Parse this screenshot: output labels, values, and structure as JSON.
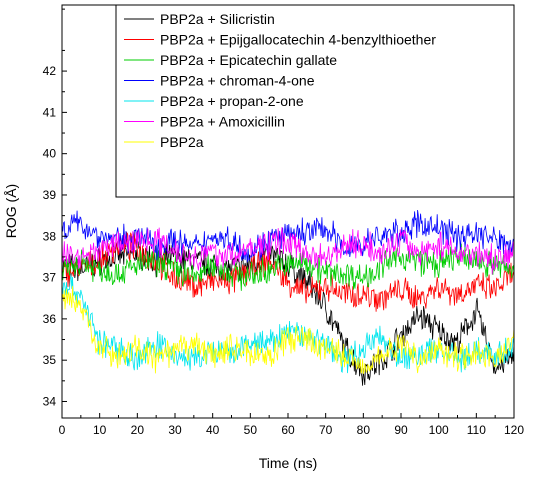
{
  "chart_data": {
    "type": "line",
    "title": "",
    "xlabel": "Time (ns)",
    "ylabel": "ROG (Å)",
    "xlim": [
      0,
      120
    ],
    "ylim": [
      33.6,
      43.6
    ],
    "xticks": [
      "0",
      "10",
      "20",
      "30",
      "40",
      "50",
      "60",
      "70",
      "80",
      "90",
      "100",
      "110",
      "120"
    ],
    "yticks": [
      "34",
      "35",
      "36",
      "37",
      "38",
      "39",
      "40",
      "41",
      "42"
    ],
    "grid": false,
    "legend_position": "top-right, inside",
    "x": [
      0,
      5,
      10,
      15,
      20,
      25,
      30,
      35,
      40,
      45,
      50,
      55,
      60,
      65,
      70,
      75,
      80,
      85,
      90,
      95,
      100,
      105,
      110,
      115,
      120
    ],
    "series": [
      {
        "name": "PBP2a + Silicristin",
        "color": "#000000",
        "values": [
          37.3,
          37.2,
          37.4,
          37.5,
          37.6,
          37.4,
          37.5,
          37.4,
          37.3,
          37.2,
          37.3,
          37.6,
          37.3,
          36.9,
          36.3,
          35.3,
          34.7,
          35.0,
          35.6,
          36.1,
          35.7,
          35.4,
          36.2,
          34.8,
          35.1
        ]
      },
      {
        "name": "PBP2a + Epijgallocatechin 4-benzylthioether",
        "color": "#ff0000",
        "values": [
          37.1,
          37.2,
          37.4,
          37.8,
          37.7,
          37.4,
          37.0,
          36.8,
          36.9,
          36.9,
          37.2,
          37.4,
          36.9,
          36.6,
          36.8,
          36.6,
          36.6,
          36.5,
          36.7,
          36.5,
          36.8,
          36.6,
          36.8,
          36.7,
          37.1
        ]
      },
      {
        "name": "PBP2a + Epicatechin gallate",
        "color": "#00cc00",
        "values": [
          37.1,
          37.4,
          37.2,
          37.1,
          37.3,
          37.4,
          37.2,
          37.0,
          37.3,
          37.1,
          37.0,
          37.2,
          37.3,
          37.4,
          37.1,
          37.1,
          37.0,
          37.3,
          37.5,
          37.4,
          37.3,
          37.5,
          37.4,
          37.3,
          37.2
        ]
      },
      {
        "name": "PBP2a + chroman-4-one",
        "color": "#0000ff",
        "values": [
          38.2,
          38.3,
          38.0,
          37.9,
          38.0,
          37.8,
          37.9,
          37.7,
          38.0,
          37.9,
          37.6,
          37.9,
          38.0,
          38.1,
          38.2,
          37.7,
          37.8,
          38.0,
          38.1,
          38.3,
          38.2,
          38.0,
          38.1,
          37.9,
          37.8
        ]
      },
      {
        "name": "PBP2a + propan-2-one",
        "color": "#00e5ee",
        "values": [
          36.9,
          36.6,
          35.4,
          35.3,
          35.0,
          35.4,
          35.1,
          35.0,
          35.2,
          35.1,
          35.4,
          35.4,
          35.7,
          35.6,
          35.4,
          35.0,
          35.3,
          35.6,
          35.0,
          35.1,
          35.3,
          35.0,
          35.2,
          35.1,
          35.3
        ]
      },
      {
        "name": "PBP2a + Amoxicillin",
        "color": "#ff00ff",
        "values": [
          37.6,
          37.5,
          37.7,
          37.8,
          37.9,
          37.9,
          37.7,
          37.5,
          37.6,
          37.5,
          37.7,
          37.8,
          37.9,
          37.6,
          37.5,
          37.8,
          37.8,
          37.6,
          37.9,
          37.6,
          37.8,
          37.6,
          37.6,
          37.4,
          37.6
        ]
      },
      {
        "name": "PBP2a",
        "color": "#ffff00",
        "values": [
          36.6,
          36.3,
          35.3,
          35.1,
          35.3,
          35.0,
          35.2,
          35.4,
          35.1,
          35.3,
          35.2,
          35.1,
          35.5,
          35.5,
          35.3,
          35.1,
          34.9,
          35.1,
          35.4,
          35.0,
          35.3,
          35.1,
          35.2,
          35.0,
          35.5
        ]
      }
    ]
  }
}
